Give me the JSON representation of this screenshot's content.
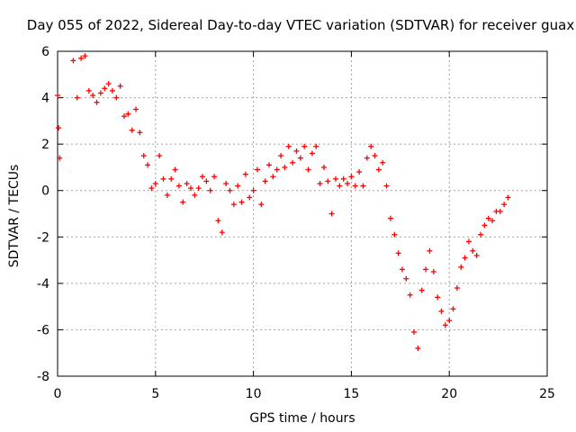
{
  "chart_data": {
    "type": "scatter",
    "title": "Day 055 of 2022, Sidereal Day-to-day VTEC variation (SDTVAR) for receiver guax",
    "xlabel": "GPS time / hours",
    "ylabel": "SDTVAR / TECUs",
    "xlim": [
      0,
      25
    ],
    "ylim": [
      -8,
      6
    ],
    "xticks": [
      "0",
      "5",
      "10",
      "15",
      "20",
      "25"
    ],
    "yticks": [
      "-8",
      "-6",
      "-4",
      "-2",
      "0",
      "2",
      "4",
      "6"
    ],
    "grid": true,
    "marker": "+",
    "colors": {
      "series": "#ff0000",
      "grid": "#a0a0a0",
      "axis": "#000000"
    },
    "series": [
      {
        "name": "SDTVAR",
        "x": [
          0.0,
          0.05,
          0.1,
          0.8,
          1.0,
          1.2,
          1.4,
          1.6,
          1.8,
          2.0,
          2.2,
          2.4,
          2.6,
          2.8,
          3.0,
          3.2,
          3.4,
          3.6,
          3.8,
          4.0,
          4.2,
          4.4,
          4.6,
          4.8,
          5.0,
          5.2,
          5.4,
          5.6,
          5.8,
          6.0,
          6.2,
          6.4,
          6.6,
          6.8,
          7.0,
          7.2,
          7.4,
          7.6,
          7.8,
          8.0,
          8.2,
          8.4,
          8.6,
          8.8,
          9.0,
          9.2,
          9.4,
          9.6,
          9.8,
          10.0,
          10.2,
          10.4,
          10.6,
          10.8,
          11.0,
          11.2,
          11.4,
          11.6,
          11.8,
          12.0,
          12.2,
          12.4,
          12.6,
          12.8,
          13.0,
          13.2,
          13.4,
          13.6,
          13.8,
          14.0,
          14.2,
          14.4,
          14.6,
          14.8,
          15.0,
          15.2,
          15.4,
          15.6,
          15.8,
          16.0,
          16.2,
          16.4,
          16.6,
          16.8,
          17.0,
          17.2,
          17.4,
          17.6,
          17.8,
          18.0,
          18.2,
          18.4,
          18.6,
          18.8,
          19.0,
          19.2,
          19.4,
          19.6,
          19.8,
          20.0,
          20.2,
          20.4,
          20.6,
          20.8,
          21.0,
          21.2,
          21.4,
          21.6,
          21.8,
          22.0,
          22.2,
          22.4,
          22.6,
          22.8,
          23.0
        ],
        "y": [
          4.1,
          2.7,
          1.4,
          5.6,
          4.0,
          5.7,
          5.8,
          4.3,
          4.1,
          3.8,
          4.2,
          4.4,
          4.6,
          4.3,
          4.0,
          4.5,
          3.2,
          3.3,
          2.6,
          3.5,
          2.5,
          1.5,
          1.1,
          0.1,
          0.3,
          1.5,
          0.5,
          -0.2,
          0.5,
          0.9,
          0.2,
          -0.5,
          0.3,
          0.1,
          -0.2,
          0.1,
          0.6,
          0.4,
          0.0,
          0.6,
          -1.3,
          -1.8,
          0.3,
          0.0,
          -0.6,
          0.2,
          -0.5,
          0.7,
          -0.3,
          0.0,
          0.9,
          -0.6,
          0.4,
          1.1,
          0.6,
          0.9,
          1.5,
          1.0,
          1.9,
          1.2,
          1.7,
          1.4,
          1.9,
          0.9,
          1.6,
          1.9,
          0.3,
          1.0,
          0.4,
          -1.0,
          0.5,
          0.2,
          0.5,
          0.3,
          0.6,
          0.2,
          0.8,
          0.2,
          1.4,
          1.9,
          1.5,
          0.9,
          1.2,
          0.2,
          -1.2,
          -1.9,
          -2.7,
          -3.4,
          -3.8,
          -4.5,
          -6.1,
          -6.8,
          -4.3,
          -3.4,
          -2.6,
          -3.5,
          -4.6,
          -5.2,
          -5.8,
          -5.6,
          -5.1,
          -4.2,
          -3.3,
          -2.9,
          -2.2,
          -2.6,
          -2.8,
          -1.9,
          -1.5,
          -1.2,
          -1.3,
          -0.9,
          -0.9,
          -0.6,
          -0.3
        ]
      }
    ]
  }
}
